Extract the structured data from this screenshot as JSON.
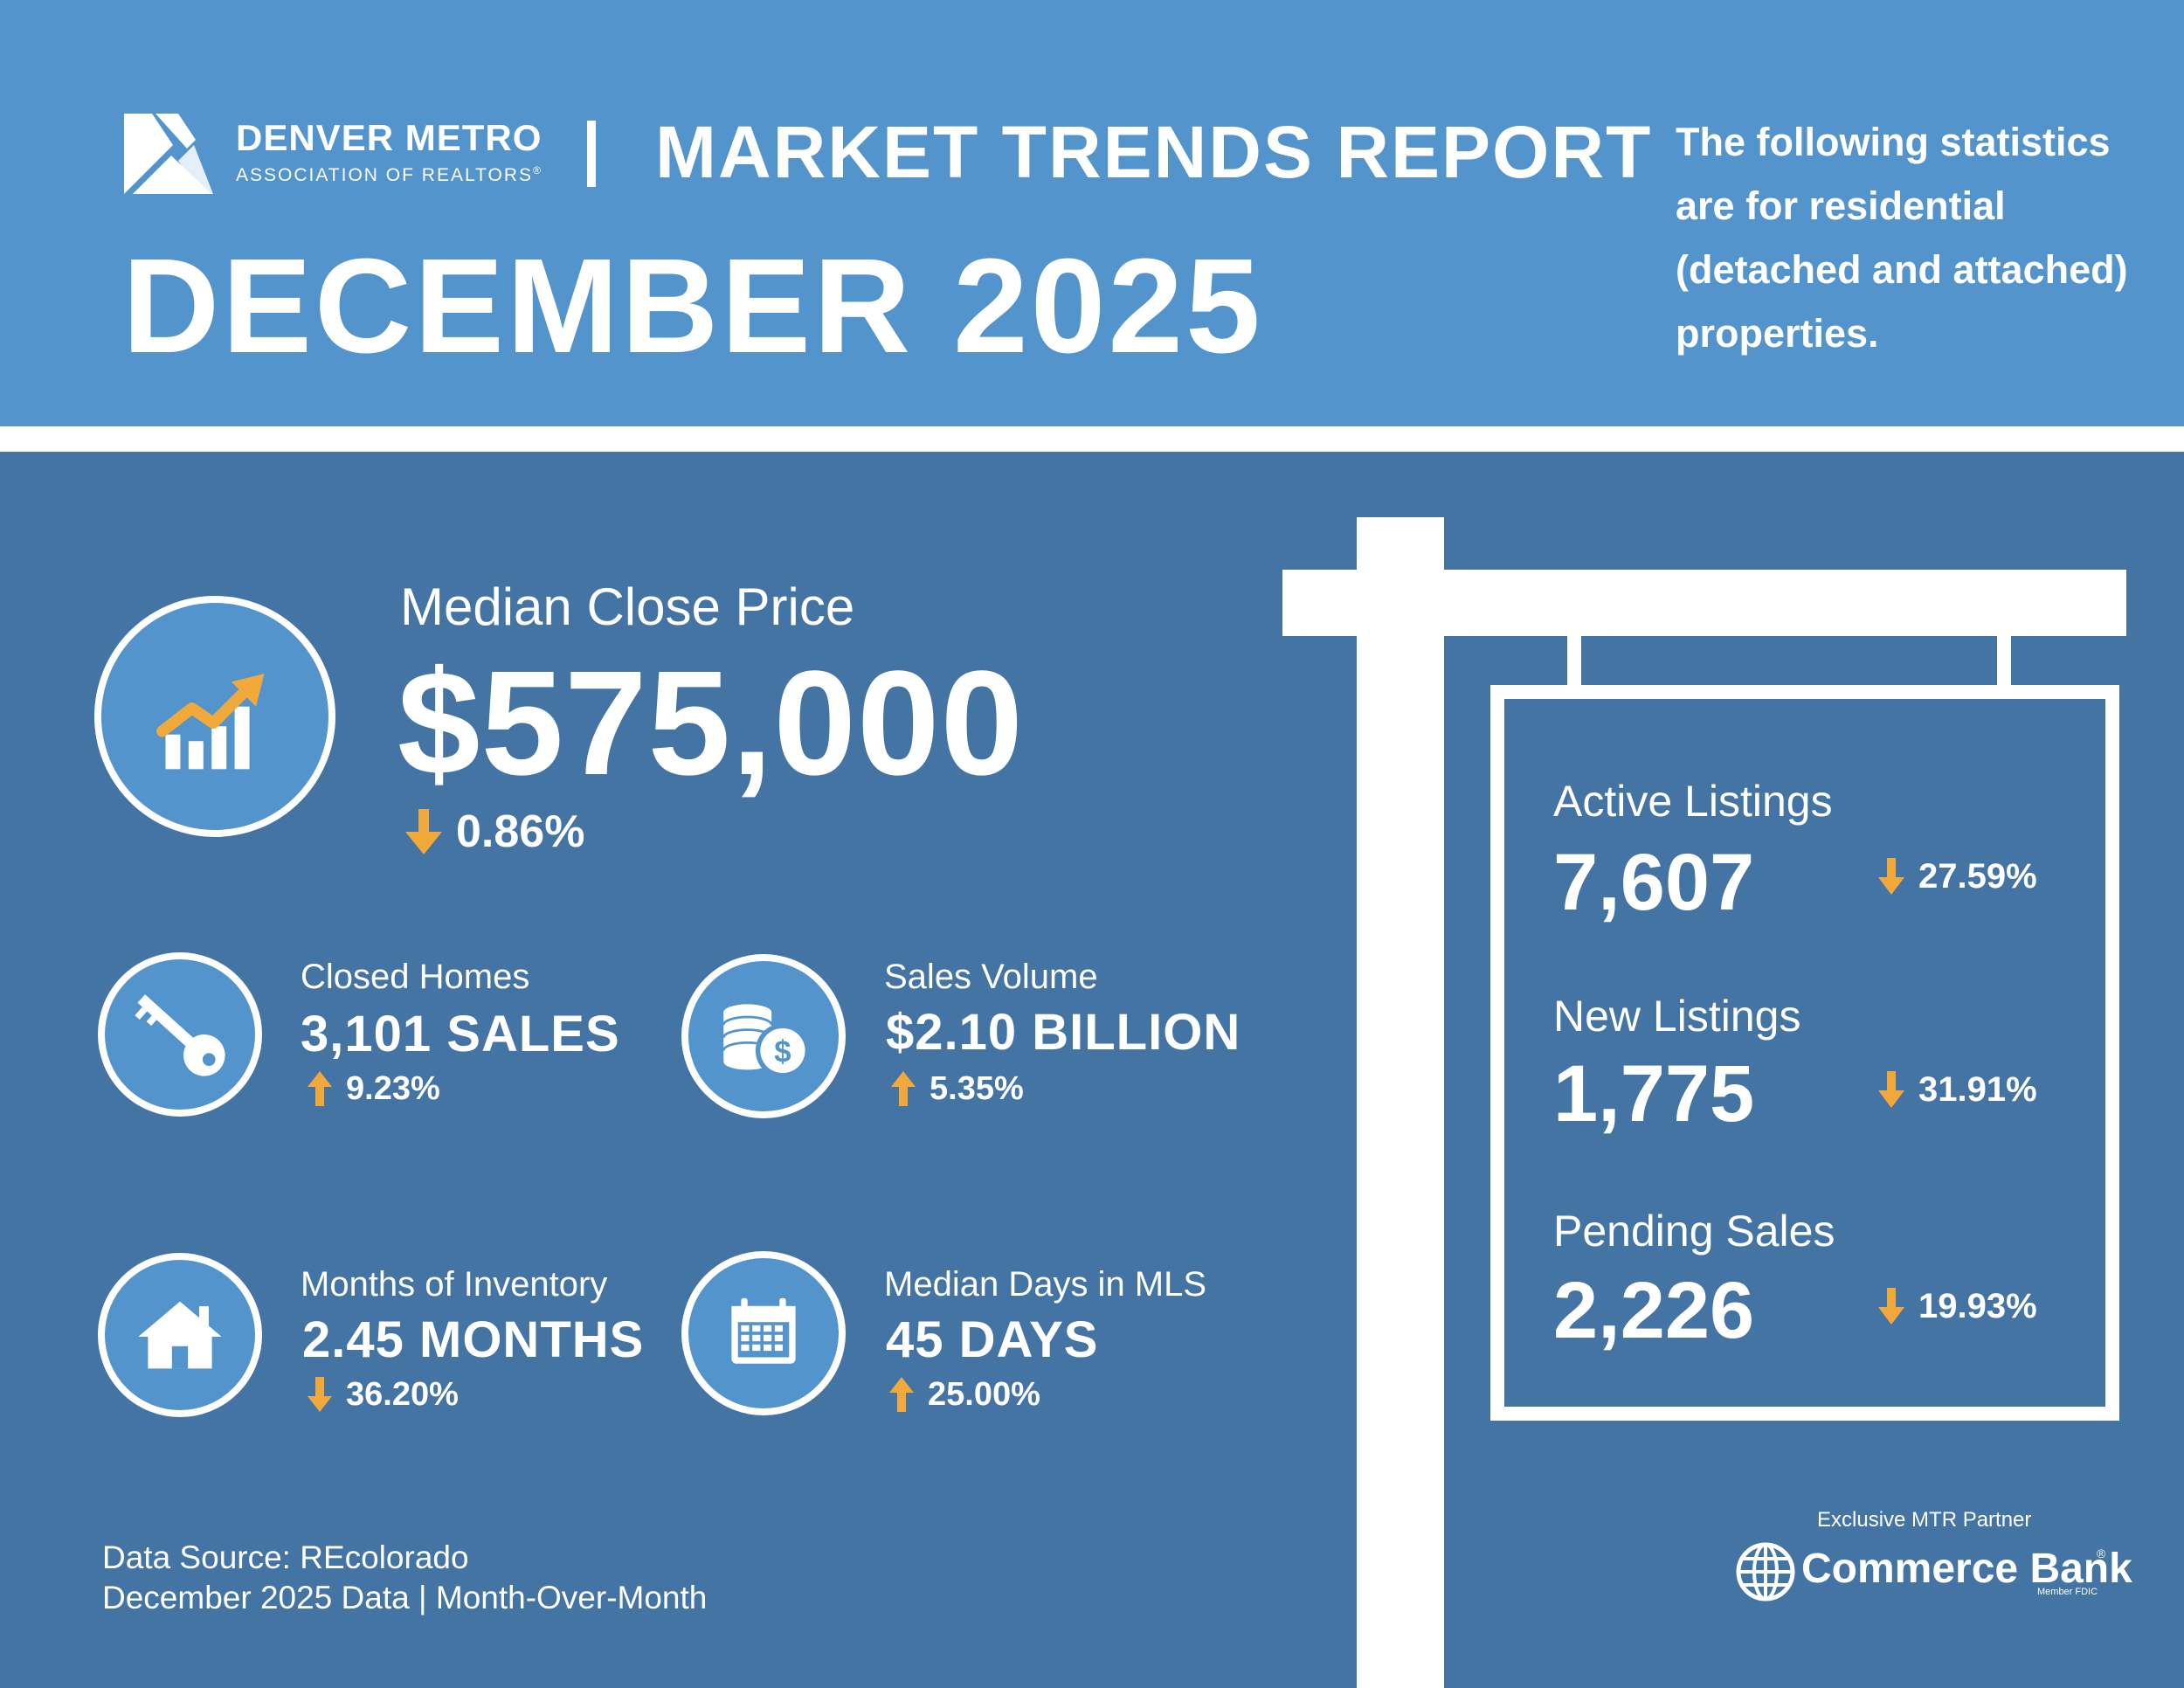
{
  "header": {
    "org_name": "DENVER METRO",
    "org_sub": "ASSOCIATION OF REALTORS",
    "org_reg": "®",
    "report_title": "MARKET TRENDS REPORT",
    "month_title": "DECEMBER 2025",
    "intro": "The following statistics are for residential (detached and attached) properties."
  },
  "median_close_price": {
    "label": "Median Close Price",
    "value": "$575,000",
    "change": "0.86%",
    "direction": "down",
    "icon": "growth-chart-icon"
  },
  "stats": {
    "closed_homes": {
      "label": "Closed Homes",
      "value": "3,101 SALES",
      "change": "9.23%",
      "direction": "up",
      "icon": "key-icon"
    },
    "sales_volume": {
      "label": "Sales Volume",
      "value": "$2.10 BILLION",
      "change": "5.35%",
      "direction": "up",
      "icon": "coins-icon"
    },
    "months_inventory": {
      "label": "Months of Inventory",
      "value": "2.45 MONTHS",
      "change": "36.20%",
      "direction": "down",
      "icon": "house-icon"
    },
    "median_days": {
      "label": "Median Days in MLS",
      "value": "45 DAYS",
      "change": "25.00%",
      "direction": "up",
      "icon": "calendar-icon"
    }
  },
  "sign": {
    "active": {
      "label": "Active Listings",
      "value": "7,607",
      "change": "27.59%",
      "direction": "down"
    },
    "new": {
      "label": "New Listings",
      "value": "1,775",
      "change": "31.91%",
      "direction": "down"
    },
    "pending": {
      "label": "Pending Sales",
      "value": "2,226",
      "change": "19.93%",
      "direction": "down"
    }
  },
  "footer": {
    "source": "Data Source: REcolorado",
    "period": "December 2025 Data | Month-Over-Month",
    "partner_label": "Exclusive MTR Partner",
    "bank_name": "Commerce Bank",
    "bank_reg": "®",
    "bank_fdic": "Member FDIC"
  },
  "colors": {
    "header_bg": "#5394cc",
    "body_bg": "#4374a4",
    "icon_circle": "#5394cc",
    "arrow": "#f2a93b",
    "text": "#ffffff"
  }
}
